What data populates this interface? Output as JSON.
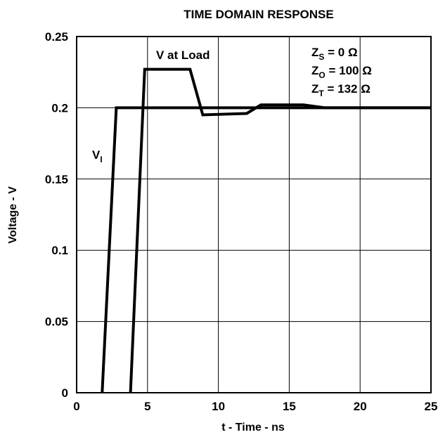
{
  "chart_data": {
    "type": "line",
    "title": "TIME DOMAIN RESPONSE",
    "xlabel": "t - Time - ns",
    "ylabel": "Voltage - V",
    "xlim": [
      0,
      25
    ],
    "ylim": [
      0,
      0.25
    ],
    "x_ticks": [
      0,
      5,
      10,
      15,
      20,
      25
    ],
    "x_tick_labels": [
      "0",
      "5",
      "10",
      "15",
      "20",
      "25"
    ],
    "y_ticks": [
      0,
      0.05,
      0.1,
      0.15,
      0.2,
      0.25
    ],
    "y_tick_labels": [
      "0",
      "0.05",
      "0.1",
      "0.15",
      "0.2",
      "0.25"
    ],
    "grid": true,
    "series": [
      {
        "name": "V_I",
        "x": [
          1.8,
          2.8,
          25
        ],
        "y": [
          0,
          0.2,
          0.2
        ]
      },
      {
        "name": "V at Load",
        "x": [
          3.8,
          4.8,
          8,
          8.9,
          12,
          13,
          16,
          17.5,
          25
        ],
        "y": [
          0,
          0.227,
          0.227,
          0.195,
          0.196,
          0.202,
          0.202,
          0.2,
          0.2
        ]
      }
    ],
    "annotations": {
      "vi": {
        "main": "V",
        "sub": "I"
      },
      "vload": "V at Load",
      "params": [
        {
          "main": "Z",
          "sub": "S",
          "rest": " = 0 Ω"
        },
        {
          "main": "Z",
          "sub": "O",
          "rest": " = 100 Ω"
        },
        {
          "main": "Z",
          "sub": "T",
          "rest": " = 132 Ω"
        }
      ]
    }
  }
}
